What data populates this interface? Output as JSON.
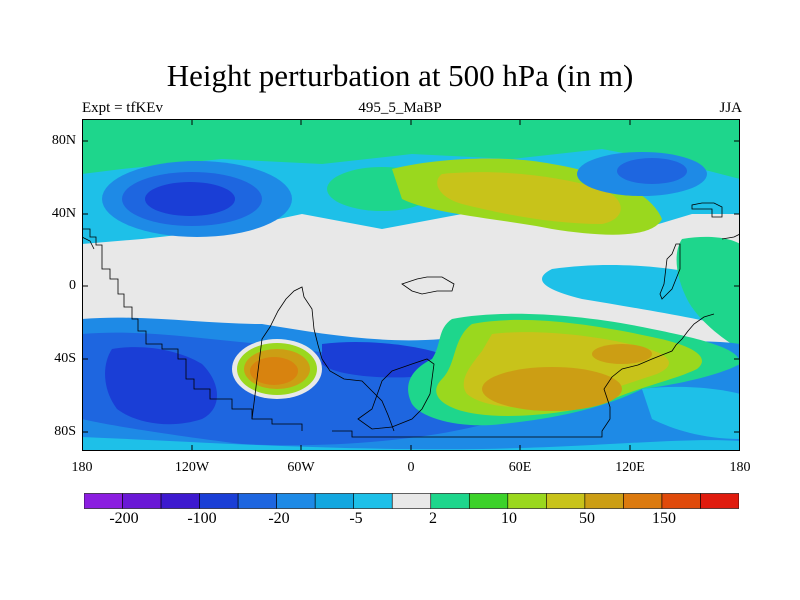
{
  "title": "Height perturbation at 500 hPa (in m)",
  "subtitle_left": "Expt = tfKEv",
  "subtitle_center": "495_5_MaBP",
  "subtitle_right": "JJA",
  "lat_ticks": [
    "80N",
    "40N",
    "0",
    "40S",
    "80S"
  ],
  "lon_ticks": [
    "180",
    "120W",
    "60W",
    "0",
    "60E",
    "120E",
    "180"
  ],
  "colorbar": {
    "colors": [
      "#8b1ee0",
      "#6a18d6",
      "#3d19cf",
      "#1a3ed6",
      "#1e66e0",
      "#1e8ae6",
      "#12a7e0",
      "#1ec0e8",
      "#e8e8e8",
      "#1ed68c",
      "#3cd22a",
      "#9ad81e",
      "#c8c31a",
      "#cc9e14",
      "#dc7a0e",
      "#e04a0a",
      "#e01b0e"
    ],
    "labels": [
      "-200",
      "-100",
      "-20",
      "-5",
      "2",
      "10",
      "50",
      "150"
    ]
  }
}
